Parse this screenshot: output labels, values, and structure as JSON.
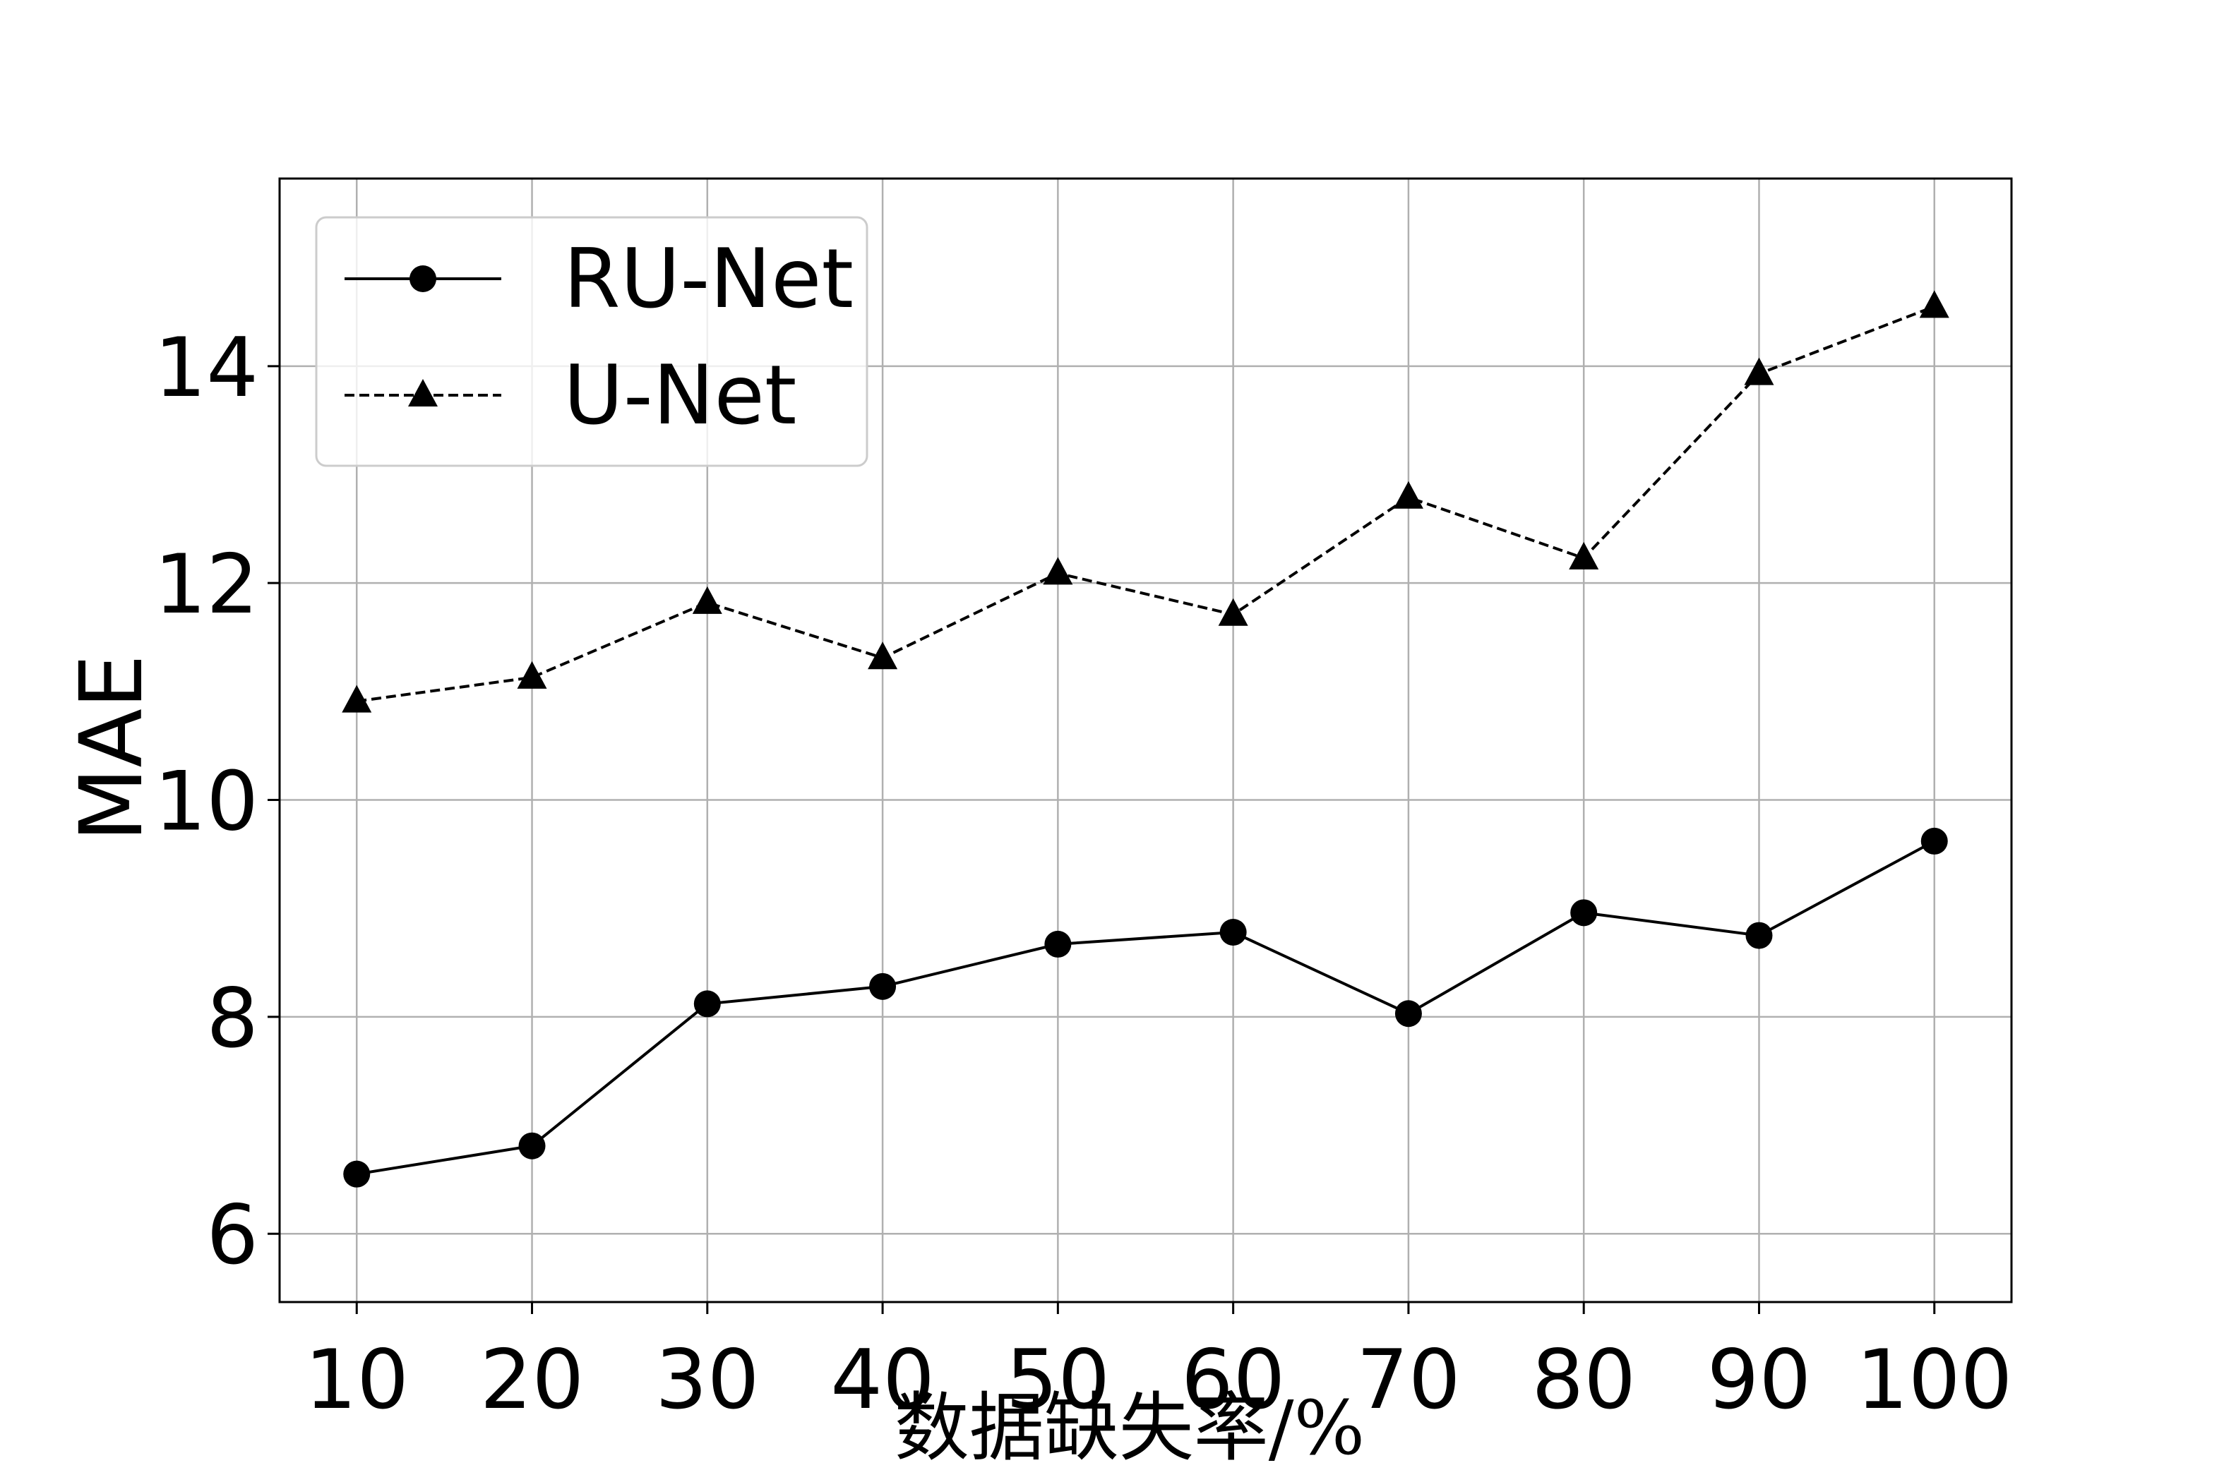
{
  "chart_data": {
    "type": "line",
    "xlabel": "数据缺失率/%",
    "ylabel": "MAE",
    "x": [
      10,
      20,
      30,
      40,
      50,
      60,
      70,
      80,
      90,
      100
    ],
    "xticks": [
      "10",
      "20",
      "30",
      "40",
      "50",
      "60",
      "70",
      "80",
      "90",
      "100"
    ],
    "yticks": [
      "6",
      "8",
      "10",
      "12",
      "14"
    ],
    "xlim": [
      5.6,
      104.4
    ],
    "ylim": [
      5.37,
      15.73
    ],
    "grid": true,
    "legend_position": "top-left",
    "series": [
      {
        "name": "RU-Net",
        "values": [
          6.55,
          6.81,
          8.12,
          8.28,
          8.67,
          8.78,
          8.03,
          8.96,
          8.75,
          9.62
        ],
        "line_style": "solid",
        "marker": "circle",
        "color": "#000000"
      },
      {
        "name": "U-Net",
        "values": [
          10.91,
          11.13,
          11.82,
          11.31,
          12.09,
          11.71,
          12.79,
          12.23,
          13.93,
          14.55
        ],
        "line_style": "dashed",
        "marker": "triangle",
        "color": "#000000"
      }
    ]
  }
}
